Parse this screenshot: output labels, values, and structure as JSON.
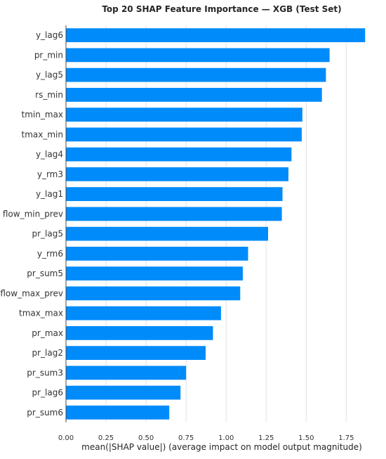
{
  "chart_data": {
    "type": "bar",
    "orientation": "horizontal",
    "title": "Top 20 SHAP Feature Importance — XGB (Test Set)",
    "xlabel": "mean(|SHAP value|) (average impact on model output magnitude)",
    "ylabel": "",
    "xlim": [
      0,
      1.95
    ],
    "xticks": [
      "0.00",
      "0.25",
      "0.50",
      "0.75",
      "1.00",
      "1.25",
      "1.50",
      "1.75"
    ],
    "grid": "vertical",
    "bar_color": "#008bfb",
    "categories": [
      "y_lag6",
      "pr_min",
      "y_lag5",
      "rs_min",
      "tmin_max",
      "tmax_min",
      "y_lag4",
      "y_rm3",
      "y_lag1",
      "flow_min_prev",
      "pr_lag5",
      "y_rm6",
      "pr_sum5",
      "flow_max_prev",
      "tmax_max",
      "pr_max",
      "pr_lag2",
      "pr_sum3",
      "pr_lag6",
      "pr_sum6"
    ],
    "values": [
      1.868,
      1.646,
      1.623,
      1.598,
      1.476,
      1.472,
      1.408,
      1.389,
      1.352,
      1.348,
      1.262,
      1.137,
      1.104,
      1.088,
      0.968,
      0.918,
      0.872,
      0.75,
      0.715,
      0.645
    ]
  }
}
